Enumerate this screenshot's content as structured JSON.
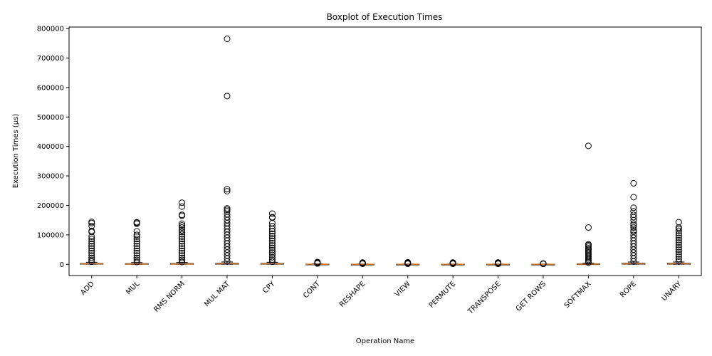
{
  "chart_data": {
    "type": "boxplot",
    "title": "Boxplot of Execution Times",
    "xlabel": "Operation Name",
    "ylabel": "Execution Times (µs)",
    "ylim": [
      -38000,
      805000
    ],
    "yticks": [
      0,
      100000,
      200000,
      300000,
      400000,
      500000,
      600000,
      700000,
      800000
    ],
    "ytick_labels": [
      "0",
      "100000",
      "200000",
      "300000",
      "400000",
      "500000",
      "600000",
      "700000",
      "800000"
    ],
    "grid": false,
    "categories": [
      "ADD",
      "MUL",
      "RMS NORM",
      "MUL MAT",
      "CPY",
      "CONT",
      "RESHAPE",
      "VIEW",
      "PERMUTE",
      "TRANSPOSE",
      "GET ROWS",
      "SOFTMAX",
      "ROPE",
      "UNARY"
    ],
    "colors": {
      "box": "#000000",
      "median": "#e07b28",
      "flier": "#000000"
    },
    "boxes": [
      {
        "label": "ADD",
        "min": 0,
        "q1": 200,
        "median": 1200,
        "q3": 2800,
        "max": 7000,
        "outliers": [
          9000,
          15000,
          22000,
          30000,
          38000,
          46000,
          54000,
          62000,
          70000,
          78000,
          86000,
          94000,
          110000,
          113000,
          130000,
          140000,
          144000
        ]
      },
      {
        "label": "MUL",
        "min": 0,
        "q1": 200,
        "median": 1000,
        "q3": 2500,
        "max": 6000,
        "outliers": [
          8000,
          15000,
          22000,
          30000,
          38000,
          46000,
          54000,
          62000,
          70000,
          78000,
          86000,
          94000,
          100000,
          112000,
          138000,
          141000,
          143000
        ]
      },
      {
        "label": "RMS NORM",
        "min": 0,
        "q1": 200,
        "median": 1100,
        "q3": 2700,
        "max": 6500,
        "outliers": [
          8000,
          15000,
          22000,
          30000,
          38000,
          46000,
          54000,
          62000,
          70000,
          78000,
          86000,
          94000,
          102000,
          110000,
          116000,
          125000,
          132000,
          138000,
          165000,
          168000,
          196000,
          209000
        ]
      },
      {
        "label": "MUL MAT",
        "min": 0,
        "q1": 300,
        "median": 1500,
        "q3": 3500,
        "max": 8000,
        "outliers": [
          10000,
          20000,
          30000,
          40000,
          50000,
          60000,
          70000,
          80000,
          90000,
          100000,
          110000,
          120000,
          130000,
          140000,
          150000,
          160000,
          170000,
          180000,
          185000,
          190000,
          248000,
          255000,
          571000,
          765000
        ]
      },
      {
        "label": "CPY",
        "min": 0,
        "q1": 200,
        "median": 1200,
        "q3": 3000,
        "max": 7000,
        "outliers": [
          9000,
          16000,
          24000,
          32000,
          40000,
          48000,
          56000,
          64000,
          72000,
          80000,
          88000,
          96000,
          104000,
          112000,
          120000,
          130000,
          140000,
          158000,
          160000,
          172000
        ]
      },
      {
        "label": "CONT",
        "min": 0,
        "q1": 50,
        "median": 300,
        "q3": 800,
        "max": 2000,
        "outliers": [
          3000,
          4000,
          5000,
          6000,
          7000,
          8000
        ]
      },
      {
        "label": "RESHAPE",
        "min": 0,
        "q1": 30,
        "median": 200,
        "q3": 500,
        "max": 1200,
        "outliers": [
          2000,
          3000,
          4000,
          5000,
          6000
        ]
      },
      {
        "label": "VIEW",
        "min": 0,
        "q1": 30,
        "median": 200,
        "q3": 500,
        "max": 1200,
        "outliers": [
          2000,
          3000,
          4000,
          5000,
          6000,
          7000
        ]
      },
      {
        "label": "PERMUTE",
        "min": 0,
        "q1": 30,
        "median": 200,
        "q3": 500,
        "max": 1200,
        "outliers": [
          2000,
          3000,
          4000,
          5000,
          6000
        ]
      },
      {
        "label": "TRANSPOSE",
        "min": 0,
        "q1": 30,
        "median": 200,
        "q3": 500,
        "max": 1200,
        "outliers": [
          2000,
          3000,
          4000,
          5500,
          6500
        ]
      },
      {
        "label": "GET ROWS",
        "min": 0,
        "q1": 30,
        "median": 200,
        "q3": 500,
        "max": 1100,
        "outliers": [
          1500,
          2000,
          2500,
          3000
        ]
      },
      {
        "label": "SOFTMAX",
        "min": 0,
        "q1": 100,
        "median": 600,
        "q3": 1600,
        "max": 4000,
        "outliers": [
          6000,
          10000,
          15000,
          20000,
          25000,
          30000,
          35000,
          40000,
          45000,
          50000,
          55000,
          60000,
          65000,
          68000,
          125000,
          402000
        ]
      },
      {
        "label": "ROPE",
        "min": 0,
        "q1": 300,
        "median": 1500,
        "q3": 3500,
        "max": 8000,
        "outliers": [
          10000,
          20000,
          30000,
          40000,
          50000,
          60000,
          70000,
          80000,
          90000,
          100000,
          110000,
          115000,
          125000,
          132000,
          138000,
          150000,
          160000,
          168000,
          180000,
          192000,
          228000,
          275000
        ]
      },
      {
        "label": "UNARY",
        "min": 0,
        "q1": 300,
        "median": 1500,
        "q3": 3500,
        "max": 8000,
        "outliers": [
          10000,
          18000,
          26000,
          34000,
          42000,
          50000,
          58000,
          66000,
          74000,
          82000,
          90000,
          98000,
          106000,
          114000,
          120000,
          125000,
          143000
        ]
      }
    ]
  }
}
